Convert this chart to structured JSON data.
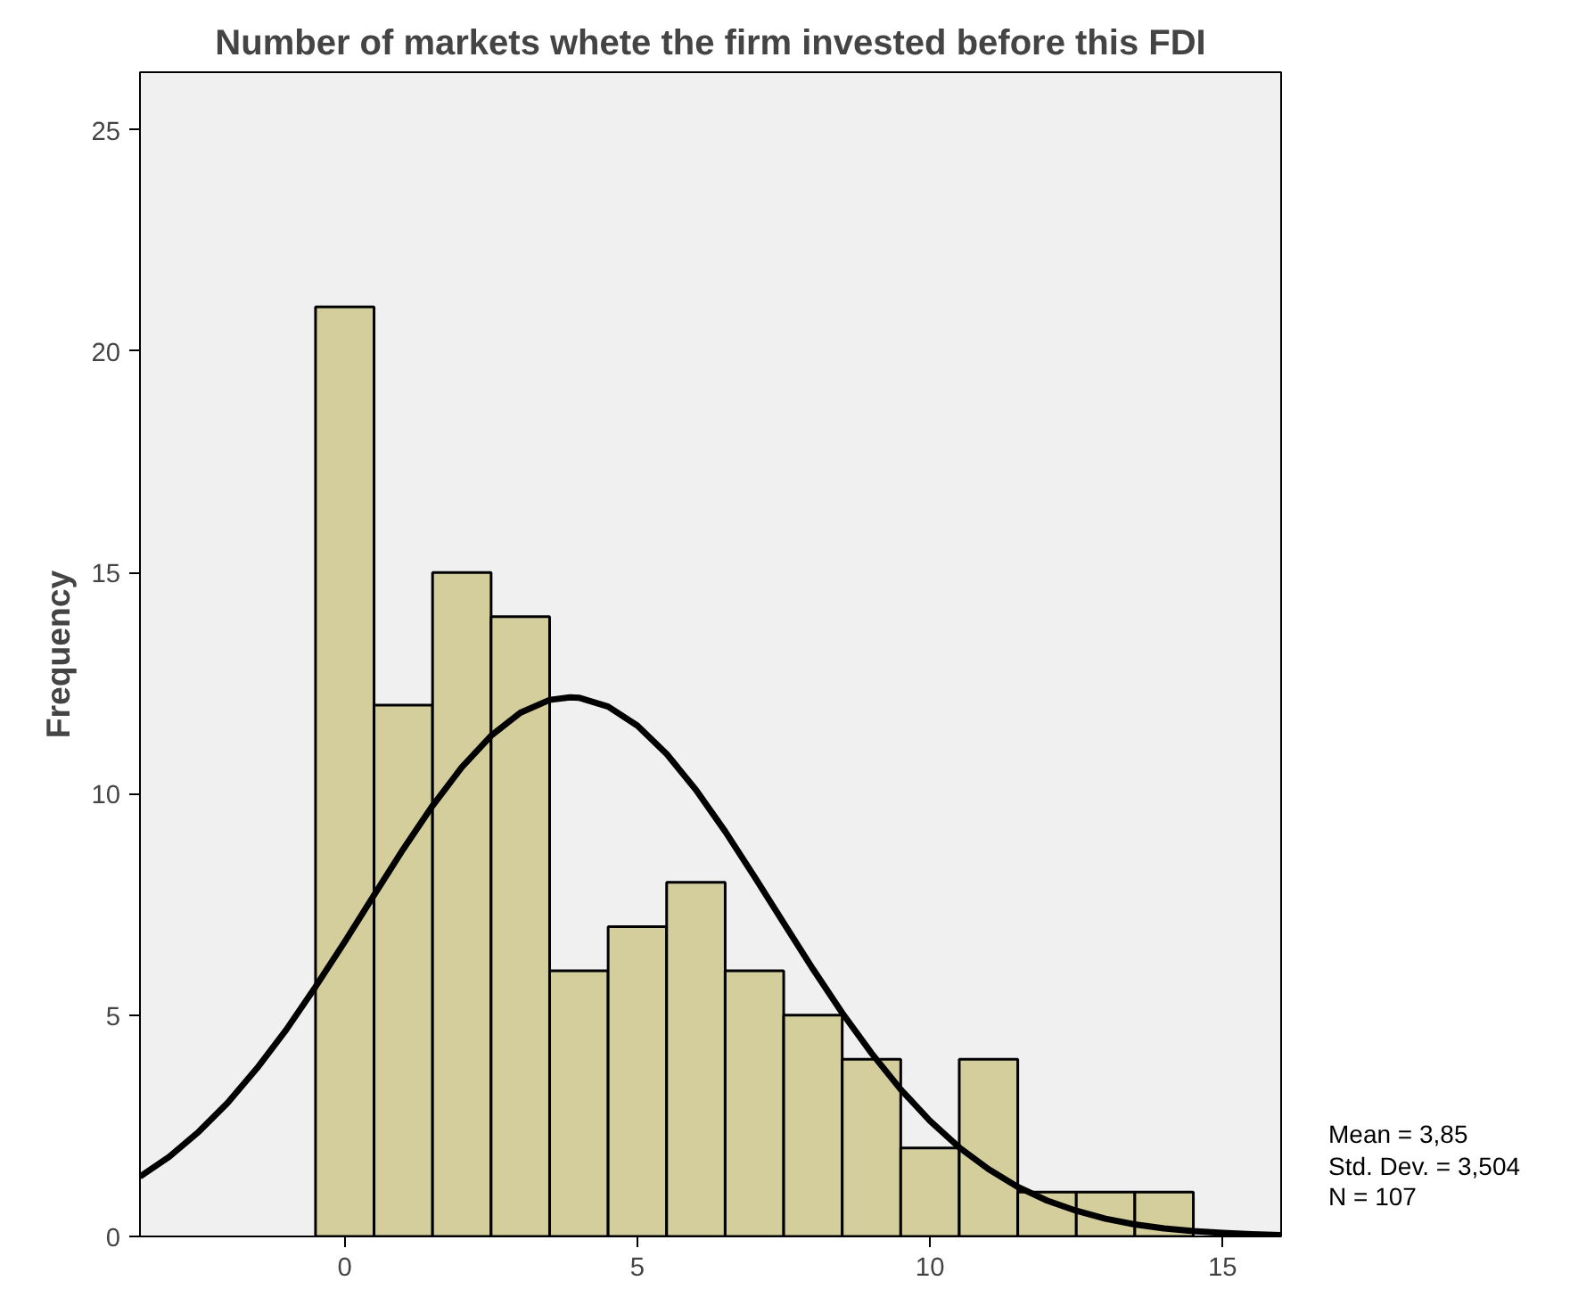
{
  "chart_data": {
    "type": "histogram",
    "title": "Number of markets whete the firm invested before this FDI",
    "ylabel": "Frequency",
    "bins": [
      -0.5,
      0.5,
      1.5,
      2.5,
      3.5,
      4.5,
      5.5,
      6.5,
      7.5,
      8.5,
      9.5,
      10.5,
      11.5,
      12.5,
      13.5,
      14.5
    ],
    "values": [
      21,
      12,
      15,
      14,
      6,
      7,
      8,
      6,
      5,
      4,
      2,
      4,
      1,
      1,
      1
    ],
    "color": "#d3ce9c",
    "series": [
      {
        "type": "line",
        "color": "#000000",
        "x": [
          -3.5,
          -3,
          -2.5,
          -2,
          -1.5,
          -1,
          -0.5,
          0,
          0.5,
          1,
          1.5,
          2,
          2.5,
          3,
          3.5,
          3.85,
          4,
          4.5,
          5,
          5.5,
          6,
          6.5,
          7,
          7.5,
          8,
          8.5,
          9,
          9.5,
          10,
          10.5,
          11,
          11.5,
          12,
          12.5,
          13,
          13.5,
          14,
          14.5,
          15,
          15.5,
          16
        ],
        "values": [
          1.35,
          1.8,
          2.36,
          3.02,
          3.8,
          4.67,
          5.64,
          6.66,
          7.71,
          8.75,
          9.73,
          10.6,
          11.31,
          11.83,
          12.12,
          12.18,
          12.17,
          11.97,
          11.54,
          10.9,
          10.09,
          9.15,
          8.13,
          7.08,
          6.04,
          5.05,
          4.14,
          3.32,
          2.61,
          2.01,
          1.52,
          1.12,
          0.81,
          0.58,
          0.4,
          0.27,
          0.18,
          0.12,
          0.08,
          0.05,
          0.03
        ]
      }
    ],
    "xlim": [
      -3.5,
      16
    ],
    "xticks": [
      0,
      5,
      10,
      15
    ],
    "ylim": [
      0,
      26.3
    ],
    "yticks": [
      0,
      5,
      10,
      15,
      20,
      25
    ],
    "grid": false,
    "annotations": [
      "Mean = 3,85",
      "Std. Dev. = 3,504",
      "N = 107"
    ]
  }
}
